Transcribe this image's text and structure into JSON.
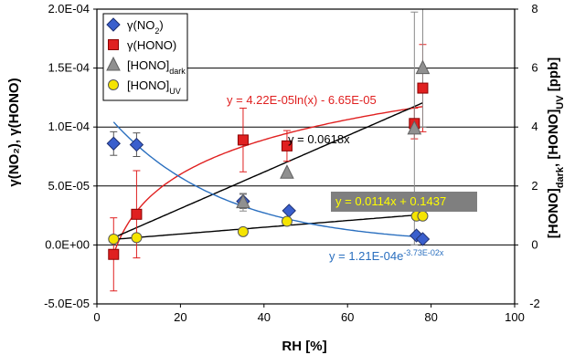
{
  "chart_data": {
    "type": "scatter",
    "xlabel": "RH [%]",
    "ylabel_left": "γ(NO₂), γ(HONO)",
    "ylabel_right": {
      "parts": [
        [
          "[HONO]",
          ""
        ],
        [
          "dark",
          "sub"
        ],
        [
          ", [HONO]",
          ""
        ],
        [
          "UV",
          "sub"
        ],
        [
          " [ppb]",
          ""
        ]
      ]
    },
    "xlim": [
      0,
      100
    ],
    "ylim_left": [
      -5e-05,
      0.0002
    ],
    "ylim_right": [
      -2,
      8
    ],
    "x_ticks": [
      0,
      20,
      40,
      60,
      80,
      100
    ],
    "y_left_ticks": [
      -5e-05,
      0.0,
      5e-05,
      0.0001,
      0.00015,
      0.0002
    ],
    "y_left_tick_labels": [
      "-5.0E-05",
      "0.0E+00",
      "5.0E-05",
      "1.0E-04",
      "1.5E-04",
      "2.0E-04"
    ],
    "y_right_ticks": [
      -2,
      0,
      2,
      4,
      6,
      8
    ],
    "gridlines_left": [
      0.0,
      5e-05,
      0.0001,
      0.00015,
      0.0002
    ],
    "legend_position": "top-left",
    "series": [
      {
        "name": "γ(NO₂)",
        "name_parts": [
          [
            "γ(NO",
            ""
          ],
          [
            "2",
            "sub"
          ],
          [
            ")",
            ""
          ]
        ],
        "axis": "left",
        "marker": "diamond",
        "color": "#3a5fcd",
        "points": [
          {
            "x": 4,
            "y": 8.6e-05,
            "err": 1e-05
          },
          {
            "x": 9.5,
            "y": 8.5e-05,
            "err": 1e-05
          },
          {
            "x": 35,
            "y": 3.7e-05,
            "err": 6e-06
          },
          {
            "x": 46,
            "y": 2.9e-05,
            "err": 0
          },
          {
            "x": 76.5,
            "y": 8e-06,
            "err": 0
          },
          {
            "x": 78,
            "y": 5e-06,
            "err": 0
          }
        ]
      },
      {
        "name": "γ(HONO)",
        "name_parts": [
          [
            "γ(HONO)",
            ""
          ]
        ],
        "axis": "left",
        "marker": "square",
        "color": "#e02020",
        "points": [
          {
            "x": 4,
            "y": -8e-06,
            "err": 3.1e-05
          },
          {
            "x": 9.5,
            "y": 2.6e-05,
            "err": 3.7e-05
          },
          {
            "x": 35,
            "y": 8.9e-05,
            "err": 2.7e-05
          },
          {
            "x": 45.5,
            "y": 8.4e-05,
            "err": 1.3e-05
          },
          {
            "x": 76,
            "y": 0.000103,
            "err": 1.3e-05
          },
          {
            "x": 78,
            "y": 0.000133,
            "err": 3.7e-05
          }
        ]
      },
      {
        "name": "[HONO]dark",
        "name_parts": [
          [
            "[HONO]",
            ""
          ],
          [
            "dark",
            "sub"
          ]
        ],
        "axis": "right",
        "marker": "triangle",
        "color": "#909090",
        "points": [
          {
            "x": 35,
            "y": 1.45,
            "err": 0.3
          },
          {
            "x": 45.5,
            "y": 2.45,
            "err": 0
          },
          {
            "x": 76,
            "y": 3.95,
            "err": 3.95
          },
          {
            "x": 78,
            "y": 6.0,
            "err": 2.0
          }
        ]
      },
      {
        "name": "[HONO]UV",
        "name_parts": [
          [
            "[HONO]",
            ""
          ],
          [
            "UV",
            "sub"
          ]
        ],
        "axis": "right",
        "marker": "circle",
        "color": "#f5e400",
        "points": [
          {
            "x": 4,
            "y": 0.2,
            "err": 0
          },
          {
            "x": 9.5,
            "y": 0.25,
            "err": 0
          },
          {
            "x": 35,
            "y": 0.45,
            "err": 0
          },
          {
            "x": 45.5,
            "y": 0.8,
            "err": 0
          },
          {
            "x": 76.5,
            "y": 0.98,
            "err": 0
          },
          {
            "x": 78,
            "y": 0.98,
            "err": 0
          }
        ]
      }
    ],
    "fits": [
      {
        "label": "y = 4.22E-05ln(x)  - 6.65E-05",
        "kind": "log",
        "axis": "left",
        "a": 4.22e-05,
        "b": -6.65e-05,
        "x_range": [
          4,
          78
        ],
        "color": "#e02020"
      },
      {
        "label": "y = 0.0618x",
        "kind": "linear",
        "axis": "right",
        "a": 0.0618,
        "b": 0,
        "x_range": [
          4,
          78
        ],
        "color": "#000000"
      },
      {
        "label": "y = 0.0114x  + 0.1437",
        "kind": "linear",
        "axis": "right",
        "a": 0.0114,
        "b": 0.1437,
        "x_range": [
          4,
          78
        ],
        "color": "#000000",
        "boxed": true
      },
      {
        "label_parts": [
          [
            "y = 1.21E-04e",
            ""
          ],
          [
            "-3.73E-02x",
            "sup"
          ]
        ],
        "kind": "exp",
        "axis": "left",
        "a": 0.000121,
        "b": -0.0373,
        "x_range": [
          4,
          78
        ],
        "color": "#2a6fbf"
      }
    ],
    "colors": {
      "box_fill": "#7f7f7f",
      "box_text": "#ffff00",
      "errorbar": "#e02020"
    }
  }
}
